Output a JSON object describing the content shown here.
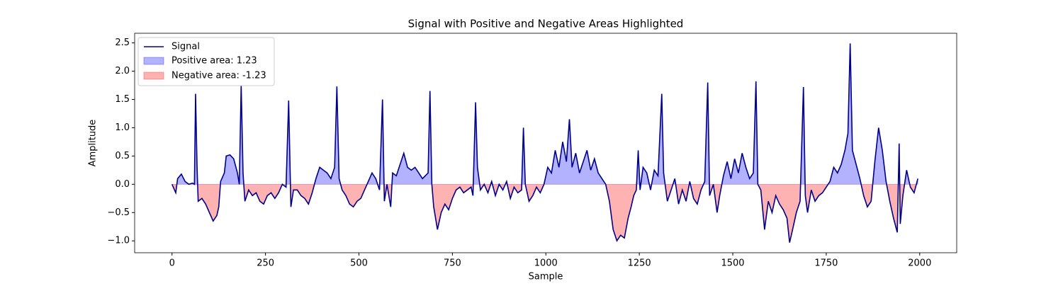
{
  "chart_data": {
    "type": "line",
    "title": "Signal with Positive and Negative Areas Highlighted",
    "x_label": "Sample",
    "y_label": "Amplitude",
    "xlim": [
      -99.95,
      2098.95
    ],
    "ylim": [
      -1.21,
      2.67
    ],
    "xticks": [
      0,
      250,
      500,
      750,
      1000,
      1250,
      1500,
      1750,
      2000
    ],
    "yticks": [
      {
        "value": -1.0,
        "label": "−1.0"
      },
      {
        "value": -0.5,
        "label": "−0.5"
      },
      {
        "value": 0,
        "label": "0.0"
      },
      {
        "value": 0.5,
        "label": "0.5"
      },
      {
        "value": 1.0,
        "label": "1.0"
      },
      {
        "value": 1.5,
        "label": "1.5"
      },
      {
        "value": 2.0,
        "label": "2.0"
      },
      {
        "value": 2.5,
        "label": "2.5"
      }
    ],
    "legend": "upper left",
    "x": [
      0,
      10,
      15,
      25,
      35,
      45,
      55,
      60,
      63,
      67,
      70,
      80,
      90,
      100,
      110,
      120,
      125,
      130,
      140,
      145,
      155,
      165,
      175,
      180,
      185,
      190,
      195,
      205,
      215,
      225,
      235,
      245,
      255,
      265,
      275,
      285,
      295,
      305,
      312,
      318,
      325,
      335,
      345,
      355,
      365,
      375,
      385,
      395,
      405,
      415,
      425,
      435,
      441,
      447,
      455,
      465,
      475,
      485,
      495,
      505,
      515,
      525,
      535,
      545,
      555,
      563,
      568,
      575,
      585,
      590,
      600,
      610,
      620,
      630,
      640,
      650,
      660,
      670,
      685,
      690,
      695,
      700,
      710,
      720,
      730,
      740,
      750,
      760,
      770,
      780,
      790,
      800,
      805,
      812,
      817,
      825,
      835,
      845,
      855,
      865,
      875,
      885,
      895,
      905,
      915,
      925,
      935,
      940,
      945,
      955,
      965,
      975,
      985,
      995,
      1005,
      1015,
      1025,
      1035,
      1045,
      1055,
      1063,
      1070,
      1080,
      1090,
      1100,
      1110,
      1120,
      1130,
      1140,
      1150,
      1160,
      1170,
      1180,
      1190,
      1200,
      1210,
      1220,
      1228,
      1235,
      1242,
      1247,
      1252,
      1260,
      1270,
      1280,
      1290,
      1300,
      1310,
      1315,
      1325,
      1335,
      1345,
      1355,
      1365,
      1375,
      1385,
      1395,
      1405,
      1415,
      1425,
      1433,
      1438,
      1448,
      1458,
      1465,
      1475,
      1485,
      1495,
      1505,
      1515,
      1525,
      1535,
      1545,
      1555,
      1562,
      1567,
      1575,
      1585,
      1595,
      1605,
      1615,
      1625,
      1635,
      1645,
      1652,
      1660,
      1670,
      1680,
      1689,
      1694,
      1700,
      1710,
      1720,
      1730,
      1740,
      1750,
      1760,
      1770,
      1780,
      1790,
      1800,
      1808,
      1814,
      1820,
      1830,
      1840,
      1850,
      1860,
      1870,
      1880,
      1890,
      1900,
      1910,
      1920,
      1930,
      1940,
      1945,
      1948,
      1955,
      1965,
      1975,
      1985,
      1995
    ],
    "series": [
      {
        "name": "Signal",
        "color": "#00008b",
        "values": [
          0.0,
          -0.15,
          0.1,
          0.18,
          0.05,
          0.0,
          0.02,
          0.0,
          1.6,
          0.3,
          -0.3,
          -0.25,
          -0.35,
          -0.5,
          -0.65,
          -0.55,
          -0.4,
          0.05,
          0.2,
          0.5,
          0.52,
          0.45,
          0.2,
          0.0,
          1.75,
          0.2,
          -0.3,
          -0.1,
          -0.2,
          -0.15,
          -0.3,
          -0.35,
          -0.2,
          -0.15,
          -0.25,
          -0.15,
          0.0,
          -0.05,
          1.48,
          -0.4,
          -0.1,
          -0.1,
          -0.2,
          -0.25,
          -0.35,
          -0.15,
          0.1,
          0.3,
          0.25,
          0.2,
          0.1,
          0.3,
          1.73,
          0.1,
          -0.1,
          -0.2,
          -0.35,
          -0.4,
          -0.3,
          -0.25,
          -0.1,
          0.05,
          0.2,
          0.1,
          -0.1,
          1.5,
          -0.3,
          0.0,
          -0.4,
          0.2,
          0.15,
          0.35,
          0.55,
          0.3,
          0.25,
          0.3,
          0.2,
          0.1,
          0.2,
          1.65,
          0.0,
          -0.4,
          -0.8,
          -0.5,
          -0.35,
          -0.45,
          -0.25,
          -0.1,
          -0.05,
          -0.15,
          -0.1,
          -0.05,
          -0.2,
          1.45,
          0.3,
          -0.1,
          0.0,
          -0.15,
          0.05,
          -0.2,
          0.0,
          -0.1,
          0.05,
          -0.25,
          -0.05,
          -0.15,
          -0.1,
          1.0,
          0.0,
          -0.3,
          -0.2,
          -0.05,
          -0.15,
          0.0,
          0.3,
          0.2,
          0.6,
          0.3,
          0.75,
          0.4,
          1.15,
          0.3,
          0.55,
          0.2,
          0.4,
          0.6,
          0.25,
          0.45,
          0.2,
          0.1,
          0.0,
          -0.3,
          -0.8,
          -1.0,
          -0.9,
          -0.95,
          -0.6,
          -0.4,
          -0.2,
          -0.1,
          0.6,
          -0.1,
          0.3,
          0.2,
          -0.1,
          0.25,
          0.15,
          1.6,
          0.2,
          -0.3,
          -0.1,
          0.1,
          -0.35,
          -0.1,
          -0.3,
          0.05,
          -0.25,
          -0.35,
          -0.1,
          0.05,
          1.8,
          -0.2,
          0.0,
          -0.5,
          -0.2,
          0.15,
          0.4,
          0.1,
          0.45,
          0.2,
          0.55,
          0.3,
          0.1,
          0.2,
          1.82,
          0.0,
          -0.1,
          -0.8,
          -0.3,
          -0.5,
          -0.2,
          -0.35,
          -0.45,
          -0.6,
          -1.03,
          -0.8,
          -0.5,
          -0.3,
          1.72,
          -0.2,
          -0.5,
          -0.1,
          -0.3,
          -0.2,
          -0.15,
          -0.05,
          0.05,
          0.3,
          0.2,
          0.35,
          0.6,
          0.9,
          2.49,
          0.6,
          0.35,
          0.1,
          -0.2,
          -0.4,
          -0.3,
          0.4,
          1.0,
          0.6,
          0.05,
          -0.3,
          -0.6,
          -0.85,
          0.72,
          -0.7,
          -0.2,
          0.25,
          -0.05,
          -0.15,
          0.1
        ]
      }
    ],
    "fills": [
      {
        "name": "Positive area: 1.23",
        "color": "#0000ff",
        "side": "positive"
      },
      {
        "name": "Negative area: -1.23",
        "color": "#ff0000",
        "side": "negative"
      }
    ]
  }
}
